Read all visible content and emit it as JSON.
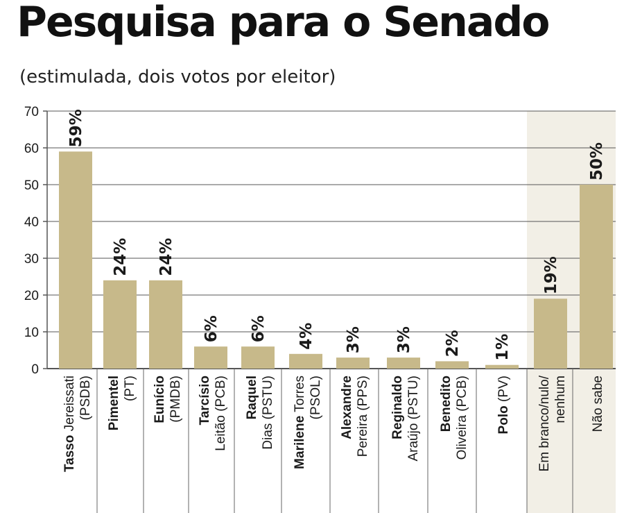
{
  "header": {
    "title": "Pesquisa para o Senado",
    "subtitle": "(estimulada, dois votos por eleitor)"
  },
  "colors": {
    "bar": "#c7b98a",
    "highlight_band": "#f2efe6",
    "grid": "#555555",
    "text": "#1a1a1a"
  },
  "chart_data": {
    "type": "bar",
    "title": "Pesquisa para o Senado",
    "subtitle": "(estimulada, dois votos por eleitor)",
    "ylim": [
      0,
      70
    ],
    "yticks": [
      0,
      10,
      20,
      30,
      40,
      50,
      60,
      70
    ],
    "grid": true,
    "categories": [
      {
        "bold": "Tasso",
        "rest": "Jereissati",
        "line2": "(PSDB)"
      },
      {
        "bold": "Pimentel",
        "rest": "",
        "line2": "(PT)"
      },
      {
        "bold": "Eunício",
        "rest": "",
        "line2": "(PMDB)"
      },
      {
        "bold": "Tarcísio",
        "rest": "",
        "line2": "Leitão (PCB)"
      },
      {
        "bold": "Raquel",
        "rest": "",
        "line2": "Dias (PSTU)"
      },
      {
        "bold": "Marilene",
        "rest": "Torres",
        "line2": "(PSOL)"
      },
      {
        "bold": "Alexandre",
        "rest": "",
        "line2": "Pereira (PPS)"
      },
      {
        "bold": "Reginaldo",
        "rest": "",
        "line2": "Araújo (PSTU)"
      },
      {
        "bold": "Benedito",
        "rest": "",
        "line2": "Oliveira (PCB)"
      },
      {
        "bold": "Polo",
        "rest": "(PV)",
        "line2": ""
      },
      {
        "bold": "",
        "rest": "Em branco/nulo/",
        "line2": "nenhum"
      },
      {
        "bold": "",
        "rest": "Não sabe",
        "line2": ""
      }
    ],
    "values": [
      59,
      24,
      24,
      6,
      6,
      4,
      3,
      3,
      2,
      1,
      19,
      50
    ],
    "value_labels": [
      "59%",
      "24%",
      "24%",
      "6%",
      "6%",
      "4%",
      "3%",
      "3%",
      "2%",
      "1%",
      "19%",
      "50%"
    ]
  }
}
